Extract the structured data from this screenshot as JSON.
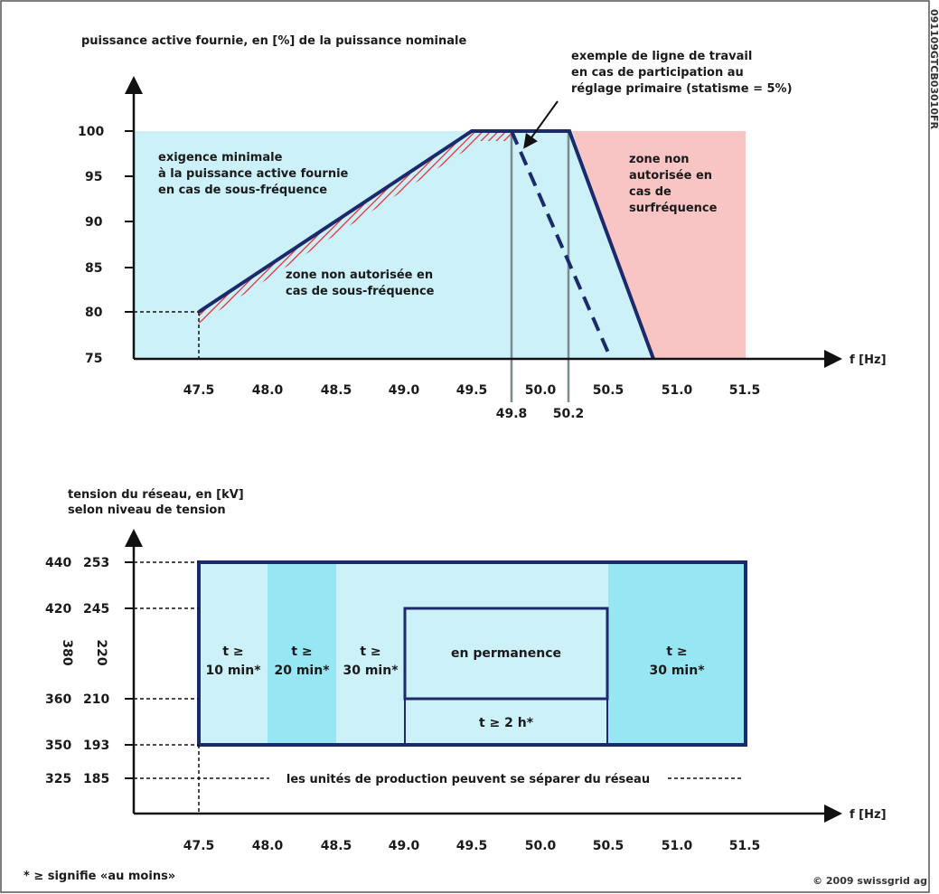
{
  "doc_code": "091109GTCB03010FR",
  "copyright": "© 2009 swissgrid ag",
  "footnote": "* ≥ signifie «au moins»",
  "colors": {
    "light_zone": "#ccf1f9",
    "mid_zone": "#96e6f3",
    "red_zone": "#f9c4c4",
    "line": "#1b2a6b"
  },
  "top_chart": {
    "title": "puissance active fournie, en [%] de la puissance nominale",
    "x_axis_label": "f [Hz]",
    "y_ticks": [
      "100",
      "95",
      "90",
      "85",
      "80",
      "75"
    ],
    "x_ticks": [
      "47.5",
      "48.0",
      "48.5",
      "49.0",
      "49.5",
      "50.0",
      "50.5",
      "51.0",
      "51.5"
    ],
    "x_sub_ticks": [
      "49.8",
      "50.2"
    ],
    "zone_min_requirement": [
      "exigence minimale",
      "à la puissance active fournie",
      "en cas de sous-fréquence"
    ],
    "zone_not_allowed_under": [
      "zone non autorisée en",
      "cas de sous-fréquence"
    ],
    "zone_not_allowed_over": [
      "zone non",
      "autorisée en",
      "cas de",
      "surfréquence"
    ],
    "example_line_note": [
      "exemple de ligne de travail",
      "en cas de participation au",
      "réglage primaire (statisme = 5%)"
    ]
  },
  "bottom_chart": {
    "title": [
      "tension du réseau, en [kV]",
      "selon niveau de tension"
    ],
    "x_axis_label": "f [Hz]",
    "y_left_ticks": [
      "440",
      "420",
      "360",
      "350",
      "325"
    ],
    "y_right_ticks": [
      "253",
      "245",
      "210",
      "193",
      "185"
    ],
    "y_mid_left": "380",
    "y_mid_right": "220",
    "x_ticks": [
      "47.5",
      "48.0",
      "48.5",
      "49.0",
      "49.5",
      "50.0",
      "50.5",
      "51.0",
      "51.5"
    ],
    "band1": [
      "t ≥",
      "10 min*"
    ],
    "band2": [
      "t ≥",
      "20 min*"
    ],
    "band3": [
      "t ≥",
      "30 min*"
    ],
    "permanent": "en permanence",
    "two_hours": "t ≥ 2 h*",
    "band5": [
      "t ≥",
      "30 min*"
    ],
    "separation_note": "les unités de production peuvent se séparer du réseau"
  }
}
